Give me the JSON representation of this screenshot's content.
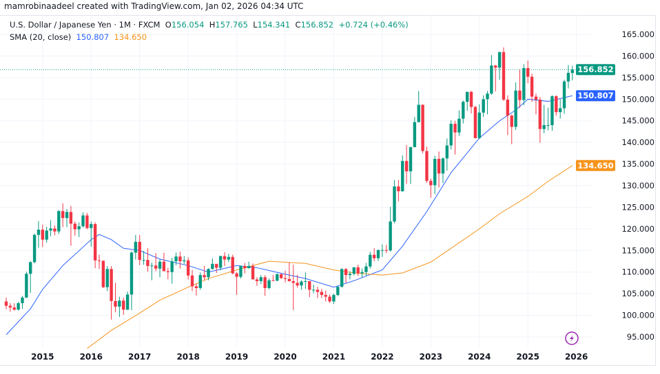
{
  "header": {
    "credit": "mamrobinaadeel created with TradingView.com, Jan 02, 2026 04:34 UTC"
  },
  "legend": {
    "symbol": "U.S. Dollar / Japanese Yen · 1M · FXCM",
    "o_label": "O",
    "open": "156.054",
    "h_label": "H",
    "high": "157.765",
    "l_label": "L",
    "low": "154.341",
    "c_label": "C",
    "close": "156.852",
    "change": "+0.724 (+0.46%)",
    "indicator": "SMA (20, close)",
    "sma_value_1": "150.807",
    "sma_value_2": "134.650"
  },
  "colors": {
    "up": "#089981",
    "down": "#f23645",
    "sma_blue": "#2962ff",
    "sma_orange": "#f7931a",
    "grid": "#f0f3fa",
    "logo": "#9c27b0"
  },
  "icons": {
    "logo": "lightning-bolt-icon"
  },
  "chart_data": {
    "type": "candlestick",
    "title": "U.S. Dollar / Japanese Yen · 1M · FXCM",
    "interval": "1M",
    "ylim": [
      92,
      168
    ],
    "y_ticks": [
      "95.000",
      "100.000",
      "105.000",
      "110.000",
      "115.000",
      "120.000",
      "125.000",
      "130.000",
      "135.000",
      "140.000",
      "145.000",
      "150.000",
      "155.000",
      "160.000",
      "165.000"
    ],
    "x_ticks": [
      "2015",
      "2016",
      "2017",
      "2018",
      "2019",
      "2020",
      "2021",
      "2022",
      "2023",
      "2024",
      "2025",
      "2026"
    ],
    "grid": true,
    "price_tags": [
      {
        "value": "156.852",
        "color": "#089981"
      },
      {
        "value": "150.807",
        "color": "#2962ff"
      },
      {
        "value": "134.650",
        "color": "#f7931a"
      }
    ],
    "last_price_line": 156.852,
    "candles_start": "2014-04",
    "ohlc": [
      [
        103.2,
        104.1,
        101.4,
        102.2
      ],
      [
        102.2,
        102.8,
        100.8,
        101.8
      ],
      [
        101.8,
        102.8,
        101.1,
        101.3
      ],
      [
        101.3,
        103.1,
        101.1,
        102.8
      ],
      [
        102.8,
        104.5,
        101.5,
        104.1
      ],
      [
        104.1,
        110.1,
        104.0,
        109.6
      ],
      [
        109.6,
        112.5,
        105.2,
        112.3
      ],
      [
        112.3,
        118.9,
        112.0,
        118.6
      ],
      [
        118.6,
        121.8,
        115.6,
        119.8
      ],
      [
        119.8,
        121.0,
        115.8,
        117.5
      ],
      [
        117.5,
        120.5,
        116.8,
        119.6
      ],
      [
        119.6,
        122.0,
        118.3,
        120.1
      ],
      [
        120.1,
        120.8,
        118.5,
        119.4
      ],
      [
        119.4,
        124.4,
        118.8,
        124.1
      ],
      [
        124.1,
        125.9,
        120.4,
        122.5
      ],
      [
        122.5,
        124.6,
        120.4,
        123.9
      ],
      [
        123.9,
        125.3,
        116.1,
        121.2
      ],
      [
        121.2,
        121.7,
        118.4,
        119.9
      ],
      [
        119.9,
        121.5,
        118.1,
        120.6
      ],
      [
        120.6,
        123.8,
        120.3,
        123.1
      ],
      [
        123.1,
        123.7,
        119.9,
        120.2
      ],
      [
        120.2,
        121.7,
        115.9,
        121.1
      ],
      [
        121.1,
        121.5,
        110.9,
        112.7
      ],
      [
        112.7,
        114.0,
        110.7,
        112.6
      ],
      [
        112.6,
        112.7,
        106.3,
        106.5
      ],
      [
        106.5,
        111.4,
        105.6,
        110.7
      ],
      [
        110.7,
        111.4,
        99.0,
        103.3
      ],
      [
        103.3,
        107.5,
        100.7,
        102.0
      ],
      [
        102.0,
        104.3,
        99.6,
        103.4
      ],
      [
        103.4,
        104.1,
        100.1,
        101.3
      ],
      [
        101.3,
        105.5,
        101.2,
        104.8
      ],
      [
        104.8,
        114.8,
        101.2,
        114.5
      ],
      [
        114.5,
        118.6,
        112.9,
        117.0
      ],
      [
        117.0,
        118.6,
        111.6,
        112.8
      ],
      [
        112.8,
        114.9,
        111.7,
        112.8
      ],
      [
        112.8,
        115.5,
        110.1,
        111.4
      ],
      [
        111.4,
        112.2,
        108.1,
        111.5
      ],
      [
        111.5,
        114.4,
        110.2,
        110.8
      ],
      [
        110.8,
        112.9,
        108.8,
        112.4
      ],
      [
        112.4,
        114.5,
        110.6,
        110.2
      ],
      [
        110.2,
        111.0,
        108.3,
        110.0
      ],
      [
        110.0,
        113.3,
        107.3,
        112.5
      ],
      [
        112.5,
        114.5,
        111.6,
        113.6
      ],
      [
        113.6,
        114.7,
        110.8,
        112.5
      ],
      [
        112.5,
        113.7,
        111.9,
        112.7
      ],
      [
        112.7,
        113.4,
        108.3,
        109.2
      ],
      [
        109.2,
        110.5,
        105.6,
        106.7
      ],
      [
        106.7,
        107.3,
        104.6,
        106.3
      ],
      [
        106.3,
        109.9,
        105.9,
        109.3
      ],
      [
        109.3,
        111.4,
        108.1,
        108.8
      ],
      [
        108.8,
        110.9,
        108.1,
        110.7
      ],
      [
        110.7,
        113.2,
        110.6,
        111.9
      ],
      [
        111.9,
        111.8,
        109.8,
        111.0
      ],
      [
        111.0,
        113.8,
        110.4,
        113.7
      ],
      [
        113.7,
        114.6,
        111.4,
        112.9
      ],
      [
        112.9,
        114.2,
        112.3,
        113.5
      ],
      [
        113.5,
        114.0,
        109.5,
        109.7
      ],
      [
        109.7,
        110.0,
        104.7,
        108.9
      ],
      [
        108.9,
        111.5,
        108.5,
        111.4
      ],
      [
        111.4,
        112.1,
        109.7,
        110.9
      ],
      [
        110.9,
        112.4,
        110.8,
        111.4
      ],
      [
        111.4,
        112.0,
        108.3,
        108.3
      ],
      [
        108.3,
        108.8,
        106.8,
        107.9
      ],
      [
        107.9,
        109.3,
        107.2,
        108.8
      ],
      [
        108.8,
        109.3,
        104.5,
        106.3
      ],
      [
        106.3,
        108.5,
        106.0,
        108.1
      ],
      [
        108.1,
        109.3,
        107.9,
        108.0
      ],
      [
        108.0,
        109.7,
        107.9,
        109.5
      ],
      [
        109.5,
        109.7,
        108.4,
        108.6
      ],
      [
        108.6,
        110.3,
        107.6,
        108.4
      ],
      [
        108.4,
        112.2,
        107.8,
        107.9
      ],
      [
        107.9,
        111.7,
        101.2,
        107.5
      ],
      [
        107.5,
        109.4,
        106.4,
        106.9
      ],
      [
        106.9,
        108.1,
        105.9,
        107.8
      ],
      [
        107.8,
        109.9,
        106.1,
        107.9
      ],
      [
        107.9,
        107.9,
        104.2,
        105.9
      ],
      [
        105.9,
        107.1,
        105.1,
        105.9
      ],
      [
        105.9,
        106.6,
        104.0,
        105.4
      ],
      [
        105.4,
        106.1,
        104.0,
        104.7
      ],
      [
        104.7,
        105.7,
        103.2,
        104.3
      ],
      [
        104.3,
        104.8,
        102.9,
        103.2
      ],
      [
        103.2,
        105.0,
        102.6,
        104.7
      ],
      [
        104.7,
        106.7,
        104.4,
        106.6
      ],
      [
        106.6,
        110.9,
        106.4,
        110.7
      ],
      [
        110.7,
        110.9,
        107.5,
        109.3
      ],
      [
        109.3,
        110.2,
        108.3,
        109.6
      ],
      [
        109.6,
        111.1,
        109.2,
        111.1
      ],
      [
        111.1,
        111.7,
        109.1,
        109.7
      ],
      [
        109.7,
        110.8,
        108.7,
        110.0
      ],
      [
        110.0,
        112.1,
        109.1,
        111.3
      ],
      [
        111.3,
        114.7,
        110.8,
        114.0
      ],
      [
        114.0,
        115.5,
        112.5,
        113.2
      ],
      [
        113.2,
        115.2,
        112.6,
        115.1
      ],
      [
        115.1,
        116.4,
        113.5,
        115.1
      ],
      [
        115.1,
        116.3,
        114.4,
        115.0
      ],
      [
        115.0,
        125.1,
        114.7,
        121.7
      ],
      [
        121.7,
        131.3,
        121.3,
        129.8
      ],
      [
        129.8,
        131.3,
        126.4,
        128.7
      ],
      [
        128.7,
        137.0,
        128.6,
        135.7
      ],
      [
        135.7,
        139.4,
        130.4,
        133.3
      ],
      [
        133.3,
        139.0,
        130.4,
        138.9
      ],
      [
        138.9,
        145.9,
        138.9,
        144.7
      ],
      [
        144.7,
        151.9,
        144.6,
        148.7
      ],
      [
        148.7,
        148.8,
        137.5,
        138.0
      ],
      [
        138.0,
        139.0,
        130.6,
        131.1
      ],
      [
        131.1,
        131.6,
        127.2,
        130.1
      ],
      [
        130.1,
        136.9,
        128.1,
        136.2
      ],
      [
        136.2,
        137.9,
        129.6,
        132.8
      ],
      [
        132.8,
        136.5,
        130.6,
        136.3
      ],
      [
        136.3,
        140.9,
        133.5,
        139.3
      ],
      [
        139.3,
        145.1,
        138.4,
        144.3
      ],
      [
        144.3,
        145.0,
        137.2,
        142.3
      ],
      [
        142.3,
        147.4,
        141.5,
        145.5
      ],
      [
        145.5,
        149.7,
        144.4,
        149.4
      ],
      [
        149.4,
        151.7,
        147.3,
        151.7
      ],
      [
        151.7,
        151.9,
        146.7,
        148.2
      ],
      [
        148.2,
        148.5,
        140.9,
        141.0
      ],
      [
        141.0,
        148.8,
        140.8,
        146.9
      ],
      [
        146.9,
        150.9,
        145.9,
        150.0
      ],
      [
        150.0,
        151.9,
        146.5,
        151.3
      ],
      [
        151.3,
        160.2,
        151.0,
        157.8
      ],
      [
        157.8,
        157.9,
        151.8,
        157.3
      ],
      [
        157.3,
        161.0,
        154.5,
        160.9
      ],
      [
        160.9,
        162.0,
        149.6,
        149.9
      ],
      [
        149.9,
        150.9,
        141.7,
        146.2
      ],
      [
        146.2,
        146.5,
        139.6,
        143.6
      ],
      [
        143.6,
        153.9,
        142.9,
        152.0
      ],
      [
        152.0,
        156.8,
        148.0,
        149.8
      ],
      [
        149.8,
        158.1,
        148.6,
        157.2
      ],
      [
        157.2,
        158.9,
        153.7,
        155.2
      ],
      [
        155.2,
        155.9,
        149.4,
        150.6
      ],
      [
        150.6,
        151.3,
        146.5,
        149.9
      ],
      [
        149.9,
        150.5,
        139.9,
        143.1
      ],
      [
        143.1,
        148.7,
        142.1,
        144.0
      ],
      [
        144.0,
        148.0,
        142.8,
        144.0
      ],
      [
        144.0,
        150.9,
        142.7,
        150.7
      ],
      [
        150.7,
        150.9,
        146.2,
        147.0
      ],
      [
        147.0,
        150.0,
        145.5,
        147.9
      ],
      [
        147.9,
        154.5,
        146.6,
        154.1
      ],
      [
        154.1,
        157.9,
        152.5,
        156.1
      ],
      [
        156.054,
        157.765,
        154.341,
        156.852
      ]
    ],
    "series": [
      {
        "name": "SMA (20, close)",
        "color": "#2962ff",
        "x": [
          "2014-04",
          "2014-10",
          "2015-01",
          "2015-06",
          "2016-01",
          "2016-03",
          "2016-06",
          "2016-09",
          "2017-01",
          "2017-06",
          "2018-01",
          "2018-06",
          "2019-01",
          "2019-06",
          "2020-01",
          "2020-06",
          "2021-01",
          "2021-06",
          "2022-01",
          "2022-06",
          "2022-12",
          "2023-06",
          "2024-01",
          "2024-06",
          "2024-10",
          "2025-01",
          "2025-06",
          "2025-12"
        ],
        "values": [
          95.5,
          101.5,
          106,
          111.5,
          117.5,
          118.7,
          117.5,
          115.5,
          115,
          113,
          111.5,
          110,
          111.5,
          111,
          109.5,
          108.5,
          106.5,
          108,
          110.5,
          116,
          124,
          133,
          141,
          145,
          147.5,
          150,
          149.5,
          150.807
        ]
      },
      {
        "name": "SMA (20, close)",
        "color": "#f7931a",
        "x": [
          "2015-12",
          "2016-06",
          "2017-01",
          "2017-06",
          "2018-01",
          "2018-06",
          "2019-01",
          "2019-09",
          "2020-06",
          "2021-01",
          "2021-06",
          "2022-01",
          "2022-06",
          "2023-01",
          "2023-06",
          "2024-01",
          "2024-06",
          "2025-01",
          "2025-06",
          "2025-12"
        ],
        "values": [
          92.3,
          96.5,
          100.5,
          103.5,
          106.5,
          108.5,
          110.5,
          112.5,
          112,
          110.5,
          109.8,
          109.3,
          109.8,
          112.3,
          115.5,
          120,
          123.5,
          127.5,
          131,
          134.65
        ]
      }
    ]
  }
}
